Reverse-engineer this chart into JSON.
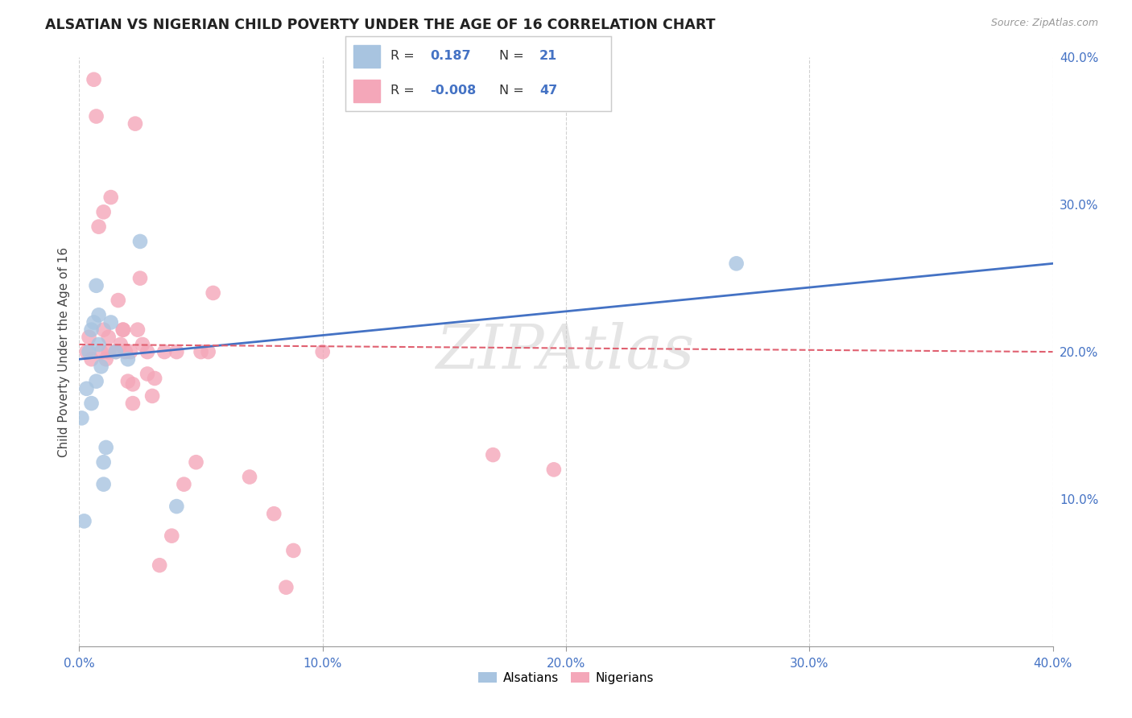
{
  "title": "ALSATIAN VS NIGERIAN CHILD POVERTY UNDER THE AGE OF 16 CORRELATION CHART",
  "source": "Source: ZipAtlas.com",
  "ylabel": "Child Poverty Under the Age of 16",
  "xlim": [
    0.0,
    0.4
  ],
  "ylim": [
    0.0,
    0.4
  ],
  "xticks": [
    0.0,
    0.1,
    0.2,
    0.3,
    0.4
  ],
  "yticks": [
    0.1,
    0.2,
    0.3,
    0.4
  ],
  "xticklabels": [
    "0.0%",
    "10.0%",
    "20.0%",
    "30.0%",
    "40.0%"
  ],
  "yticklabels": [
    "10.0%",
    "20.0%",
    "30.0%",
    "40.0%"
  ],
  "alsatian_color": "#a8c4e0",
  "nigerian_color": "#f4a7b9",
  "alsatian_line_color": "#4472c4",
  "nigerian_line_color": "#e06070",
  "alsatian_R": 0.187,
  "alsatian_N": 21,
  "nigerian_R": -0.008,
  "nigerian_N": 47,
  "legend_label_alsatian": "Alsatians",
  "legend_label_nigerian": "Nigerians",
  "watermark": "ZIPAtlas",
  "background_color": "#ffffff",
  "grid_color": "#cccccc",
  "alsatian_x": [
    0.001,
    0.002,
    0.003,
    0.004,
    0.005,
    0.005,
    0.006,
    0.007,
    0.007,
    0.008,
    0.008,
    0.009,
    0.01,
    0.01,
    0.011,
    0.013,
    0.015,
    0.02,
    0.025,
    0.04,
    0.27
  ],
  "alsatian_y": [
    0.155,
    0.085,
    0.175,
    0.2,
    0.215,
    0.165,
    0.22,
    0.18,
    0.245,
    0.205,
    0.225,
    0.19,
    0.125,
    0.11,
    0.135,
    0.22,
    0.2,
    0.195,
    0.275,
    0.095,
    0.26
  ],
  "nigerian_x": [
    0.003,
    0.004,
    0.005,
    0.006,
    0.007,
    0.008,
    0.009,
    0.01,
    0.01,
    0.011,
    0.012,
    0.012,
    0.013,
    0.015,
    0.016,
    0.017,
    0.018,
    0.018,
    0.019,
    0.02,
    0.021,
    0.022,
    0.022,
    0.023,
    0.024,
    0.025,
    0.026,
    0.028,
    0.028,
    0.03,
    0.031,
    0.033,
    0.035,
    0.038,
    0.04,
    0.043,
    0.048,
    0.05,
    0.053,
    0.055,
    0.07,
    0.08,
    0.085,
    0.088,
    0.1,
    0.17,
    0.195
  ],
  "nigerian_y": [
    0.2,
    0.21,
    0.195,
    0.385,
    0.36,
    0.285,
    0.2,
    0.215,
    0.295,
    0.195,
    0.21,
    0.2,
    0.305,
    0.2,
    0.235,
    0.205,
    0.215,
    0.215,
    0.2,
    0.18,
    0.2,
    0.165,
    0.178,
    0.355,
    0.215,
    0.25,
    0.205,
    0.2,
    0.185,
    0.17,
    0.182,
    0.055,
    0.2,
    0.075,
    0.2,
    0.11,
    0.125,
    0.2,
    0.2,
    0.24,
    0.115,
    0.09,
    0.04,
    0.065,
    0.2,
    0.13,
    0.12
  ],
  "alsatian_line_x0": 0.0,
  "alsatian_line_y0": 0.195,
  "alsatian_line_x1": 0.4,
  "alsatian_line_y1": 0.26,
  "nigerian_line_x0": 0.0,
  "nigerian_line_y0": 0.205,
  "nigerian_line_x1": 0.4,
  "nigerian_line_y1": 0.2
}
